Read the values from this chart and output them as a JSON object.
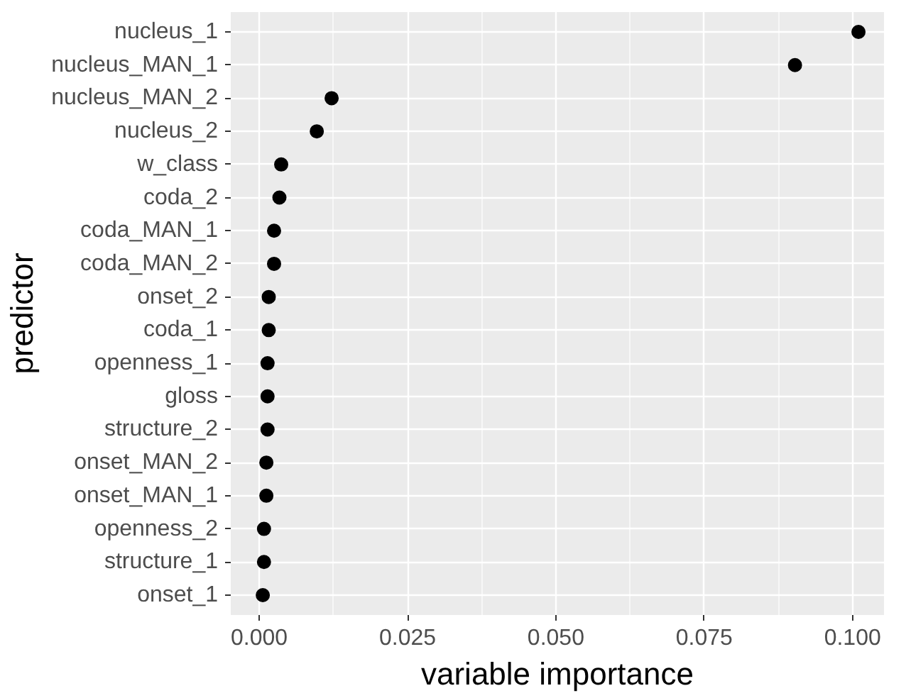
{
  "chart_data": {
    "type": "scatter",
    "orientation": "horizontal",
    "xlabel": "variable importance",
    "ylabel": "predictor",
    "categories": [
      "nucleus_1",
      "nucleus_MAN_1",
      "nucleus_MAN_2",
      "nucleus_2",
      "w_class",
      "coda_2",
      "coda_MAN_1",
      "coda_MAN_2",
      "onset_2",
      "coda_1",
      "openness_1",
      "gloss",
      "structure_2",
      "onset_MAN_2",
      "onset_MAN_1",
      "openness_2",
      "structure_1",
      "onset_1"
    ],
    "values": [
      0.101,
      0.0903,
      0.0122,
      0.0097,
      0.0037,
      0.0034,
      0.0025,
      0.0025,
      0.0016,
      0.0016,
      0.0014,
      0.0014,
      0.0014,
      0.0012,
      0.0012,
      0.0008,
      0.0008,
      0.0006
    ],
    "color": "#000000",
    "marker": "circle",
    "grid": true,
    "xlim": [
      -0.0048,
      0.1053
    ],
    "xticks": [
      {
        "value": 0,
        "label": "0.000"
      },
      {
        "value": 0.025,
        "label": "0.025"
      },
      {
        "value": 0.05,
        "label": "0.050"
      },
      {
        "value": 0.075,
        "label": "0.075"
      },
      {
        "value": 0.1,
        "label": "0.100"
      }
    ]
  }
}
